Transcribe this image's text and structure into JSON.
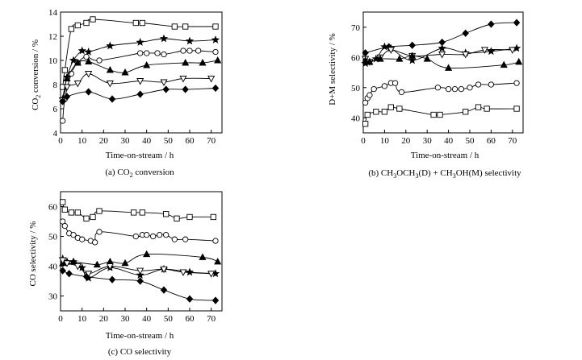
{
  "chart_data": [
    {
      "type": "line",
      "xlabel": "Time-on-stream / h",
      "ylabel": "CO2 conversion / %",
      "caption": "(a) CO2 conversion",
      "xlim": [
        0,
        75
      ],
      "ylim": [
        4,
        14
      ],
      "xticks": [
        0,
        10,
        20,
        30,
        40,
        50,
        60,
        70
      ],
      "yticks": [
        4,
        6,
        8,
        10,
        12,
        14
      ],
      "grid": false,
      "legend": "none",
      "series": [
        {
          "marker": "square",
          "x": [
            1,
            2,
            5,
            8,
            12,
            15,
            35,
            38,
            53,
            58,
            72
          ],
          "y": [
            7.8,
            9.2,
            12.6,
            12.9,
            13.1,
            13.4,
            13.1,
            13.1,
            12.8,
            12.8,
            12.8
          ]
        },
        {
          "marker": "star",
          "x": [
            1,
            3,
            6,
            10,
            13,
            23,
            37,
            48,
            60,
            72
          ],
          "y": [
            6.8,
            8.6,
            10.0,
            10.8,
            10.7,
            11.2,
            11.5,
            11.8,
            11.6,
            11.7
          ]
        },
        {
          "marker": "circle",
          "x": [
            1,
            2,
            5,
            8,
            12,
            18,
            37,
            40,
            45,
            48,
            57,
            60,
            64,
            72
          ],
          "y": [
            5.0,
            6.8,
            8.9,
            9.8,
            10.3,
            10.0,
            10.6,
            10.6,
            10.6,
            10.5,
            10.8,
            10.8,
            10.8,
            10.7
          ]
        },
        {
          "marker": "triangle-up",
          "x": [
            1,
            3,
            8,
            13,
            23,
            30,
            40,
            58,
            66,
            73
          ],
          "y": [
            6.8,
            8.5,
            9.8,
            9.9,
            9.2,
            9.0,
            9.6,
            9.8,
            9.8,
            10.0
          ]
        },
        {
          "marker": "triangle-down",
          "x": [
            1,
            3,
            8,
            13,
            23,
            37,
            48,
            57,
            70
          ],
          "y": [
            6.7,
            7.8,
            8.1,
            8.9,
            8.1,
            8.3,
            8.2,
            8.5,
            8.5
          ]
        },
        {
          "marker": "diamond",
          "x": [
            1,
            3,
            13,
            24,
            37,
            49,
            58,
            72
          ],
          "y": [
            6.6,
            7.0,
            7.4,
            6.8,
            7.2,
            7.6,
            7.6,
            7.7
          ]
        }
      ]
    },
    {
      "type": "line",
      "xlabel": "Time-on-stream / h",
      "ylabel": "D+M selectivity / %",
      "caption": "(b) CH3OCH3(D) + CH3OH(M) selectivity",
      "xlim": [
        0,
        75
      ],
      "ylim": [
        35,
        75
      ],
      "xticks": [
        0,
        10,
        20,
        30,
        40,
        50,
        60,
        70
      ],
      "yticks": [
        40,
        50,
        60,
        70
      ],
      "grid": false,
      "legend": "none",
      "series": [
        {
          "marker": "diamond",
          "x": [
            1,
            12,
            23,
            37,
            48,
            60,
            72
          ],
          "y": [
            61.5,
            63.5,
            64.0,
            65.0,
            68.0,
            71.0,
            71.5
          ]
        },
        {
          "marker": "star",
          "x": [
            1,
            3,
            6,
            10,
            13,
            23,
            37,
            48,
            60,
            72
          ],
          "y": [
            58.0,
            58.5,
            59.5,
            63.5,
            63.0,
            59.0,
            63.0,
            61.5,
            62.0,
            63.0
          ]
        },
        {
          "marker": "triangle-down",
          "x": [
            1,
            3,
            8,
            13,
            23,
            37,
            48,
            57,
            70
          ],
          "y": [
            59.5,
            58.5,
            60.0,
            62.5,
            60.5,
            61.0,
            61.0,
            62.5,
            62.5
          ]
        },
        {
          "marker": "triangle-up",
          "x": [
            1,
            3,
            8,
            17,
            23,
            30,
            40,
            66,
            73
          ],
          "y": [
            59.0,
            58.5,
            59.5,
            59.5,
            60.5,
            59.5,
            56.5,
            57.5,
            58.5
          ]
        },
        {
          "marker": "circle",
          "x": [
            1,
            2,
            3,
            5,
            10,
            13,
            15,
            18,
            35,
            40,
            43,
            46,
            50,
            54,
            60,
            72
          ],
          "y": [
            45.0,
            46.5,
            47.5,
            49.5,
            50.5,
            51.5,
            51.5,
            48.5,
            50.0,
            49.5,
            49.5,
            49.5,
            50.0,
            51.0,
            51.0,
            51.5
          ]
        },
        {
          "marker": "square",
          "x": [
            1,
            2,
            6,
            10,
            13,
            17,
            33,
            36,
            48,
            54,
            58,
            72
          ],
          "y": [
            38.0,
            41.0,
            42.0,
            42.0,
            43.5,
            43.0,
            41.0,
            41.0,
            42.0,
            43.5,
            43.0,
            43.0
          ]
        }
      ]
    },
    {
      "type": "line",
      "xlabel": "Time-on-stream / h",
      "ylabel": "CO selectivity / %",
      "caption": "(c) CO selectivity",
      "xlim": [
        0,
        75
      ],
      "ylim": [
        25,
        65
      ],
      "xticks": [
        0,
        10,
        20,
        30,
        40,
        50,
        60,
        70
      ],
      "yticks": [
        30,
        40,
        50,
        60
      ],
      "grid": false,
      "legend": "none",
      "series": [
        {
          "marker": "square",
          "x": [
            1,
            2,
            5,
            8,
            12,
            15,
            18,
            34,
            38,
            49,
            54,
            60,
            71
          ],
          "y": [
            61.5,
            59.0,
            58.0,
            58.0,
            56.0,
            56.5,
            58.5,
            58.0,
            58.0,
            57.5,
            56.0,
            56.5,
            56.5
          ]
        },
        {
          "marker": "circle",
          "x": [
            1,
            2,
            4,
            6,
            8,
            10,
            14,
            16,
            18,
            35,
            38,
            40,
            43,
            46,
            49,
            53,
            58,
            72
          ],
          "y": [
            55.0,
            53.5,
            51.0,
            50.5,
            49.5,
            49.0,
            48.5,
            48.0,
            51.5,
            50.0,
            50.5,
            50.5,
            50.0,
            50.5,
            50.5,
            49.0,
            49.0,
            48.5
          ]
        },
        {
          "marker": "triangle-up",
          "x": [
            1,
            3,
            6,
            17,
            23,
            30,
            40,
            66,
            73
          ],
          "y": [
            41.0,
            41.5,
            41.5,
            40.5,
            41.5,
            41.0,
            44.0,
            43.0,
            41.5
          ]
        },
        {
          "marker": "star",
          "x": [
            1,
            3,
            6,
            10,
            13,
            23,
            37,
            48,
            60,
            72
          ],
          "y": [
            42.5,
            41.5,
            41.5,
            39.5,
            36.0,
            39.5,
            37.0,
            39.0,
            38.0,
            37.5
          ]
        },
        {
          "marker": "triangle-down",
          "x": [
            1,
            3,
            8,
            13,
            23,
            37,
            48,
            57,
            70
          ],
          "y": [
            42.0,
            41.0,
            40.0,
            37.5,
            40.0,
            38.5,
            39.0,
            38.0,
            37.5
          ]
        },
        {
          "marker": "diamond",
          "x": [
            1,
            4,
            12,
            24,
            37,
            48,
            60,
            72
          ],
          "y": [
            38.5,
            37.5,
            36.5,
            35.5,
            35.0,
            32.0,
            29.0,
            28.5
          ]
        }
      ]
    }
  ]
}
